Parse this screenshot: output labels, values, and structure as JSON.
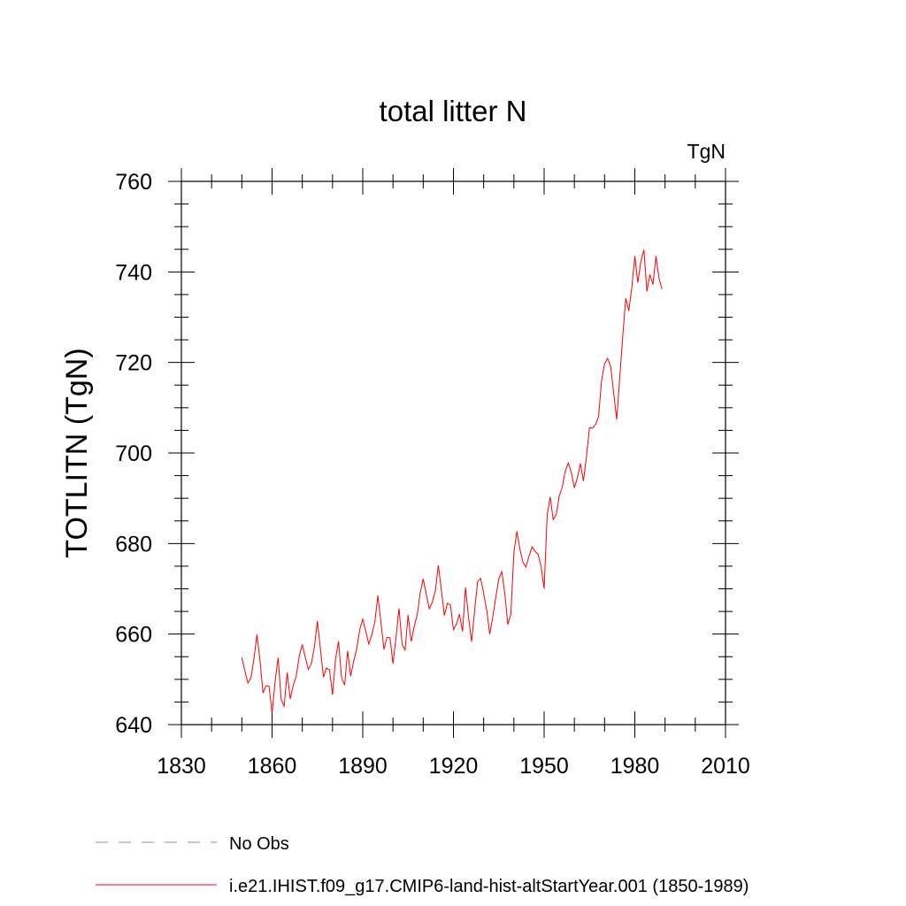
{
  "chart_data": {
    "type": "line",
    "title": "total litter N",
    "units_label": "TgN",
    "ylabel": "TOTLITN  (TgN)",
    "xlabel": "",
    "xlim": [
      1830,
      2010
    ],
    "ylim": [
      640,
      760
    ],
    "xticks": [
      1830,
      1860,
      1890,
      1920,
      1950,
      1980,
      2010
    ],
    "yticks": [
      640,
      660,
      680,
      700,
      720,
      740,
      760
    ],
    "x_minor_step": 10,
    "y_minor_step": 5,
    "grid": false,
    "legend_position": "bottom-left",
    "series": [
      {
        "name": "No Obs",
        "color": "#8a7fc8",
        "dash": "dashed",
        "values": []
      },
      {
        "name": "i.e21.IHIST.f09_g17.CMIP6-land-hist-altStartYear.001 (1850-1989)",
        "color": "#ff0000",
        "dash": "solid",
        "x_start": 1850,
        "x_step": 1,
        "values": [
          654.8,
          651.9,
          649.2,
          650.3,
          654.5,
          659.9,
          654.2,
          647.0,
          648.6,
          648.5,
          642.5,
          649.5,
          654.8,
          645.6,
          644.1,
          651.5,
          645.7,
          648.7,
          650.7,
          655.2,
          657.7,
          654.8,
          652.2,
          653.5,
          657.1,
          662.9,
          656.7,
          650.5,
          652.5,
          652.1,
          646.6,
          654.5,
          658.4,
          650.3,
          648.7,
          656.3,
          650.7,
          654.0,
          656.7,
          661.0,
          663.3,
          660.6,
          657.8,
          659.9,
          662.7,
          668.5,
          662.7,
          656.6,
          659.3,
          659.2,
          653.5,
          659.3,
          665.7,
          657.8,
          656.5,
          664.2,
          658.4,
          661.6,
          664.2,
          669.1,
          672.2,
          668.9,
          665.6,
          667.0,
          669.5,
          675.2,
          669.8,
          664.1,
          666.8,
          666.4,
          661.0,
          662.2,
          664.4,
          660.6,
          670.3,
          663.7,
          658.3,
          665.2,
          671.6,
          672.3,
          669.0,
          665.3,
          660.0,
          663.7,
          668.1,
          672.2,
          673.8,
          668.9,
          662.1,
          664.4,
          678.0,
          682.7,
          678.8,
          675.8,
          674.8,
          677.2,
          679.3,
          678.3,
          677.6,
          675.0,
          670.0,
          686.3,
          690.3,
          685.3,
          686.4,
          690.5,
          692.5,
          696.0,
          697.8,
          695.7,
          692.3,
          694.5,
          697.7,
          693.8,
          699.1,
          705.6,
          705.5,
          706.3,
          708.0,
          716.0,
          719.7,
          720.9,
          719.2,
          713.3,
          707.4,
          716.5,
          725.7,
          734.2,
          731.4,
          736.5,
          743.5,
          737.6,
          742.3,
          744.9,
          735.7,
          739.4,
          737.2,
          743.5,
          738.6,
          736.2
        ]
      }
    ]
  }
}
